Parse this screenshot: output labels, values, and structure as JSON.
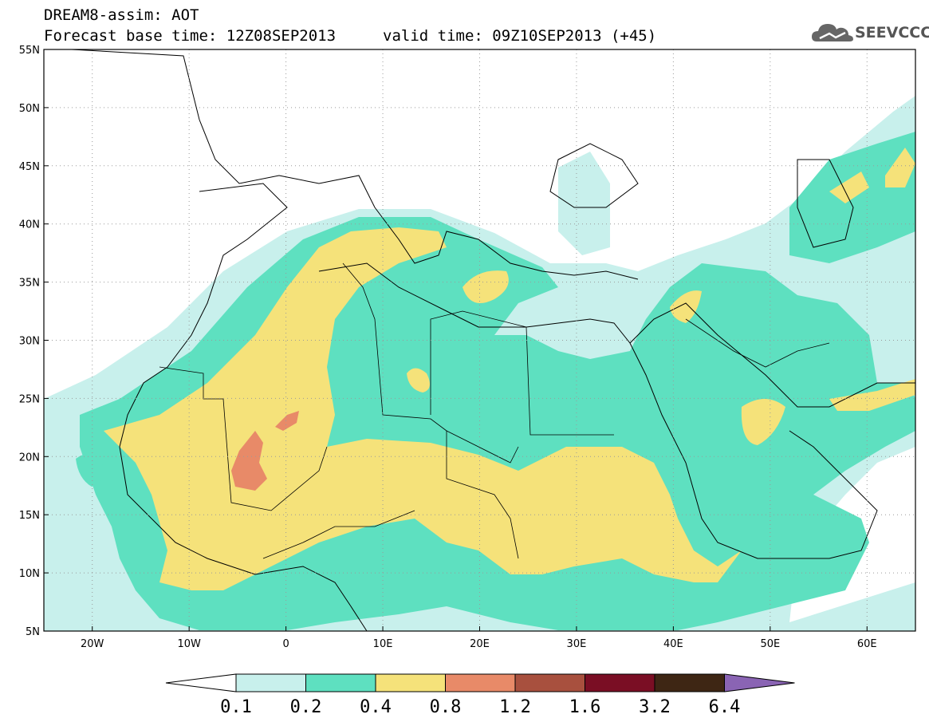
{
  "header": {
    "line1": "DREAM8-assim: AOT",
    "line2": "Forecast base time: 12Z08SEP2013",
    "line3": "valid time: 09Z10SEP2013 (+45)"
  },
  "logo": {
    "text": "SEEVCCC",
    "icon": "cloud-icon"
  },
  "map": {
    "lat_labels": [
      "55N",
      "50N",
      "45N",
      "40N",
      "35N",
      "30N",
      "25N",
      "20N",
      "15N",
      "10N",
      "5N"
    ],
    "lon_labels": [
      "20W",
      "10W",
      "0",
      "10E",
      "20E",
      "30E",
      "40E",
      "50E",
      "60E"
    ],
    "lon_range": [
      -25,
      65
    ],
    "lat_range": [
      5,
      55
    ],
    "gridlines": "dotted"
  },
  "colorbar": {
    "labels": [
      "0.1",
      "0.2",
      "0.4",
      "0.8",
      "1.2",
      "1.6",
      "3.2",
      "6.4"
    ],
    "colors": [
      "#c8f0ec",
      "#5ee0c0",
      "#f5e27a",
      "#e88a68",
      "#a8503e",
      "#7a0e24",
      "#3e2614",
      "#8a64b4"
    ]
  }
}
